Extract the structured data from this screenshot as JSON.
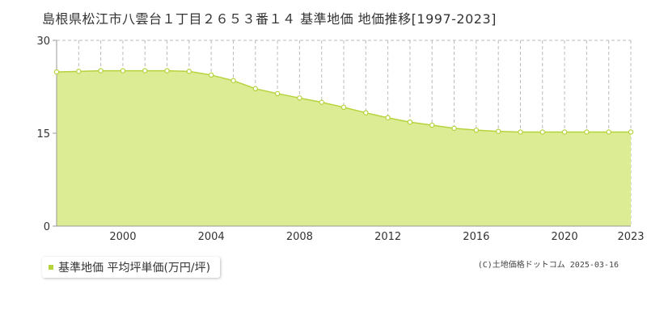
{
  "title": "島根県松江市八雲台１丁目２６５３番１４ 基準地価 地価推移[1997-2023]",
  "legend_label": "基準地価 平均坪単価(万円/坪)",
  "copyright": "(C)土地価格ドットコム 2025-03-16",
  "colors": {
    "area_fill": "#dbec94",
    "line": "#b5d33a",
    "point_fill": "#ffffff",
    "grid": "#bbbbbb",
    "axis": "#999999"
  },
  "chart_data": {
    "type": "area",
    "title": "島根県松江市八雲台１丁目２６５３番１４ 基準地価 地価推移[1997-2023]",
    "xlabel": "",
    "ylabel": "",
    "xlim": [
      1997,
      2023
    ],
    "ylim": [
      0,
      30
    ],
    "y_ticks": [
      0,
      15,
      30
    ],
    "x_tick_labels": [
      2000,
      2004,
      2008,
      2012,
      2016,
      2020,
      2023
    ],
    "grid": true,
    "legend_position": "bottom-left",
    "series": [
      {
        "name": "基準地価 平均坪単価(万円/坪)",
        "x": [
          1997,
          1998,
          1999,
          2000,
          2001,
          2002,
          2003,
          2004,
          2005,
          2006,
          2007,
          2008,
          2009,
          2010,
          2011,
          2012,
          2013,
          2014,
          2015,
          2016,
          2017,
          2018,
          2019,
          2020,
          2021,
          2022,
          2023
        ],
        "y": [
          24.9,
          25.0,
          25.1,
          25.1,
          25.1,
          25.1,
          25.0,
          24.4,
          23.5,
          22.2,
          21.4,
          20.7,
          20.0,
          19.2,
          18.3,
          17.5,
          16.8,
          16.3,
          15.8,
          15.5,
          15.3,
          15.2,
          15.2,
          15.2,
          15.2,
          15.2,
          15.2
        ]
      }
    ]
  }
}
